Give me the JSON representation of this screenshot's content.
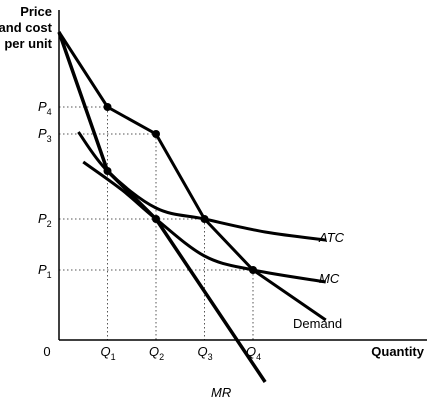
{
  "chart_data": {
    "type": "line",
    "ylabel_lines": [
      "Price",
      "and cost",
      "per unit"
    ],
    "xlabel": "Quantity",
    "origin": "0",
    "x_ticks": [
      {
        "main": "Q",
        "sub": "1",
        "x": 1
      },
      {
        "main": "Q",
        "sub": "2",
        "x": 2
      },
      {
        "main": "Q",
        "sub": "3",
        "x": 3
      },
      {
        "main": "Q",
        "sub": "4",
        "x": 4
      }
    ],
    "y_ticks": [
      {
        "main": "P",
        "sub": "4",
        "y": 4
      },
      {
        "main": "P",
        "sub": "3",
        "y": 3
      },
      {
        "main": "P",
        "sub": "2",
        "y": 2
      },
      {
        "main": "P",
        "sub": "1",
        "y": 1
      }
    ],
    "series": [
      {
        "name": "Demand",
        "points": [
          [
            0,
            6
          ],
          [
            1,
            4
          ],
          [
            2,
            3
          ],
          [
            3,
            2
          ],
          [
            4,
            1
          ],
          [
            5.5,
            -0.4
          ]
        ]
      },
      {
        "name": "MR",
        "points": [
          [
            0,
            6
          ],
          [
            1,
            2.7
          ],
          [
            2,
            2
          ],
          [
            4.25,
            -2
          ]
        ]
      },
      {
        "name": "ATC",
        "points": [
          [
            0.4,
            3.4
          ],
          [
            1,
            2.7
          ],
          [
            2,
            2.2
          ],
          [
            3,
            2
          ],
          [
            4.25,
            1.6
          ],
          [
            5.5,
            1.4
          ]
        ]
      },
      {
        "name": "MC",
        "points": [
          [
            0.5,
            2.9
          ],
          [
            1.3,
            2.3
          ],
          [
            2,
            2
          ],
          [
            3,
            1.5
          ],
          [
            4,
            1
          ],
          [
            5.5,
            0.7
          ]
        ]
      }
    ],
    "key_points": [
      {
        "x": 1,
        "y": 4
      },
      {
        "x": 2,
        "y": 3
      },
      {
        "x": 1,
        "y": 2.7
      },
      {
        "x": 2,
        "y": 2
      },
      {
        "x": 3,
        "y": 2
      },
      {
        "x": 4,
        "y": 1
      }
    ],
    "guides": [
      {
        "x": 1,
        "y": 4
      },
      {
        "x": 2,
        "y": 3
      },
      {
        "x": 3,
        "y": 2
      },
      {
        "x": 4,
        "y": 1
      }
    ]
  }
}
